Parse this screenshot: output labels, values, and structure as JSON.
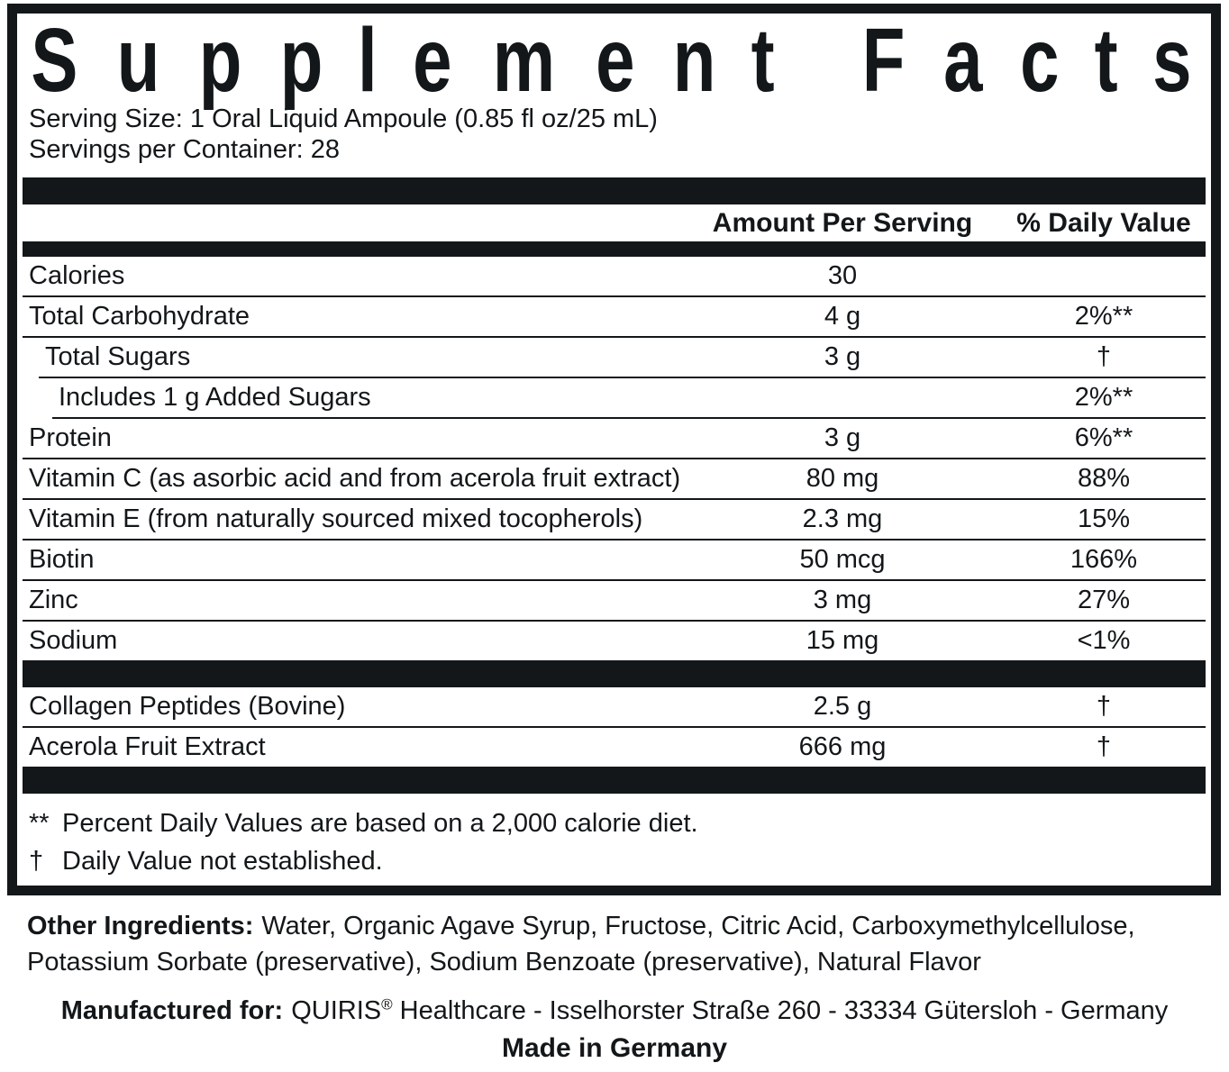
{
  "colors": {
    "ink": "#131719",
    "background": "#ffffff"
  },
  "label": {
    "title": "Supplement Facts",
    "serving_size": "Serving Size: 1 Oral Liquid Ampoule (0.85 fl oz/25 mL)",
    "servings_per_container": "Servings per Container: 28",
    "columns": {
      "amount": "Amount Per Serving",
      "daily_value": "% Daily Value"
    },
    "sections": [
      {
        "rows": [
          {
            "name": "Calories",
            "amount": "30",
            "dv": "",
            "indent": 0
          },
          {
            "name": "Total Carbohydrate",
            "amount": "4 g",
            "dv": "2%**",
            "indent": 0
          },
          {
            "name": "Total Sugars",
            "amount": "3 g",
            "dv": "†",
            "indent": 1
          },
          {
            "name": "Includes 1 g Added Sugars",
            "amount": "",
            "dv": "2%**",
            "indent": 2
          },
          {
            "name": "Protein",
            "amount": "3 g",
            "dv": "6%**",
            "indent": 0
          },
          {
            "name": "Vitamin C (as asorbic acid and from acerola fruit extract)",
            "amount": "80 mg",
            "dv": "88%",
            "indent": 0
          },
          {
            "name": "Vitamin E (from naturally sourced mixed tocopherols)",
            "amount": "2.3 mg",
            "dv": "15%",
            "indent": 0
          },
          {
            "name": "Biotin",
            "amount": "50 mcg",
            "dv": "166%",
            "indent": 0
          },
          {
            "name": "Zinc",
            "amount": "3 mg",
            "dv": "27%",
            "indent": 0
          },
          {
            "name": "Sodium",
            "amount": "15 mg",
            "dv": "<1%",
            "indent": 0
          }
        ]
      },
      {
        "rows": [
          {
            "name": "Collagen Peptides (Bovine)",
            "amount": "2.5 g",
            "dv": "†",
            "indent": 0
          },
          {
            "name": "Acerola Fruit Extract",
            "amount": "666 mg",
            "dv": "†",
            "indent": 0
          }
        ]
      }
    ],
    "footnotes": [
      {
        "symbol": "**",
        "text": "Percent Daily Values are based on a 2,000 calorie diet."
      },
      {
        "symbol": "†",
        "text": "Daily Value not established."
      }
    ]
  },
  "footer": {
    "other_ingredients_label": "Other Ingredients:",
    "other_ingredients_text": "Water, Organic Agave Syrup, Fructose, Citric Acid, Carboxymethylcellulose, Potassium Sorbate (preservative), Sodium Benzoate (preservative), Natural Flavor",
    "manufactured_label": "Manufactured for:",
    "brand": "QUIRIS",
    "registered_mark": "®",
    "manufactured_text": "Healthcare - Isselhorster Straße 260 - 33334 Gütersloh - Germany",
    "made_in": "Made in Germany"
  }
}
